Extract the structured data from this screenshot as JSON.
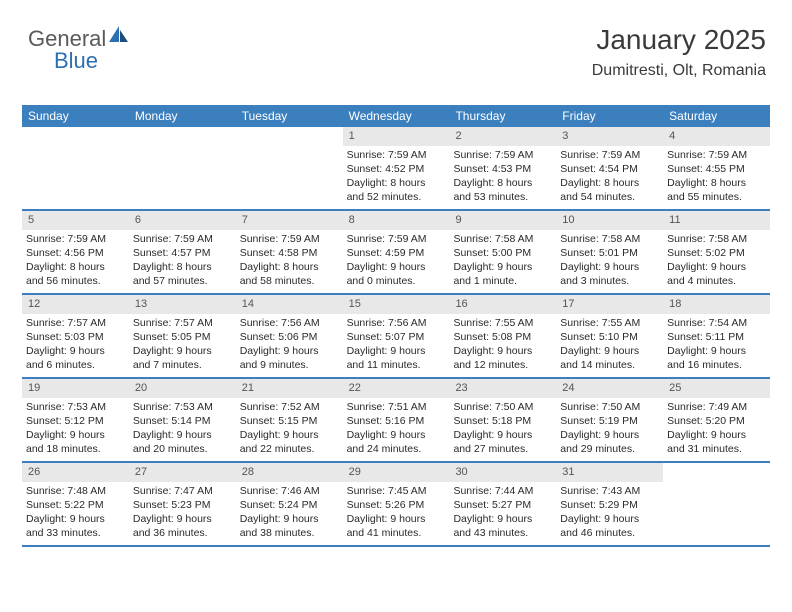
{
  "logo": {
    "text1": "General",
    "text2": "Blue"
  },
  "header": {
    "month": "January 2025",
    "location": "Dumitresti, Olt, Romania"
  },
  "colors": {
    "header_bg": "#3b7fbf",
    "header_text": "#ffffff",
    "daynum_bg": "#e8e8e8",
    "row_border": "#3b7fbf",
    "logo_gray": "#5a5a5a",
    "logo_blue": "#2d6fb3"
  },
  "day_labels": [
    "Sunday",
    "Monday",
    "Tuesday",
    "Wednesday",
    "Thursday",
    "Friday",
    "Saturday"
  ],
  "weeks": [
    [
      {
        "n": "",
        "sunrise": "",
        "sunset": "",
        "day": ""
      },
      {
        "n": "",
        "sunrise": "",
        "sunset": "",
        "day": ""
      },
      {
        "n": "",
        "sunrise": "",
        "sunset": "",
        "day": ""
      },
      {
        "n": "1",
        "sunrise": "Sunrise: 7:59 AM",
        "sunset": "Sunset: 4:52 PM",
        "day": "Daylight: 8 hours and 52 minutes."
      },
      {
        "n": "2",
        "sunrise": "Sunrise: 7:59 AM",
        "sunset": "Sunset: 4:53 PM",
        "day": "Daylight: 8 hours and 53 minutes."
      },
      {
        "n": "3",
        "sunrise": "Sunrise: 7:59 AM",
        "sunset": "Sunset: 4:54 PM",
        "day": "Daylight: 8 hours and 54 minutes."
      },
      {
        "n": "4",
        "sunrise": "Sunrise: 7:59 AM",
        "sunset": "Sunset: 4:55 PM",
        "day": "Daylight: 8 hours and 55 minutes."
      }
    ],
    [
      {
        "n": "5",
        "sunrise": "Sunrise: 7:59 AM",
        "sunset": "Sunset: 4:56 PM",
        "day": "Daylight: 8 hours and 56 minutes."
      },
      {
        "n": "6",
        "sunrise": "Sunrise: 7:59 AM",
        "sunset": "Sunset: 4:57 PM",
        "day": "Daylight: 8 hours and 57 minutes."
      },
      {
        "n": "7",
        "sunrise": "Sunrise: 7:59 AM",
        "sunset": "Sunset: 4:58 PM",
        "day": "Daylight: 8 hours and 58 minutes."
      },
      {
        "n": "8",
        "sunrise": "Sunrise: 7:59 AM",
        "sunset": "Sunset: 4:59 PM",
        "day": "Daylight: 9 hours and 0 minutes."
      },
      {
        "n": "9",
        "sunrise": "Sunrise: 7:58 AM",
        "sunset": "Sunset: 5:00 PM",
        "day": "Daylight: 9 hours and 1 minute."
      },
      {
        "n": "10",
        "sunrise": "Sunrise: 7:58 AM",
        "sunset": "Sunset: 5:01 PM",
        "day": "Daylight: 9 hours and 3 minutes."
      },
      {
        "n": "11",
        "sunrise": "Sunrise: 7:58 AM",
        "sunset": "Sunset: 5:02 PM",
        "day": "Daylight: 9 hours and 4 minutes."
      }
    ],
    [
      {
        "n": "12",
        "sunrise": "Sunrise: 7:57 AM",
        "sunset": "Sunset: 5:03 PM",
        "day": "Daylight: 9 hours and 6 minutes."
      },
      {
        "n": "13",
        "sunrise": "Sunrise: 7:57 AM",
        "sunset": "Sunset: 5:05 PM",
        "day": "Daylight: 9 hours and 7 minutes."
      },
      {
        "n": "14",
        "sunrise": "Sunrise: 7:56 AM",
        "sunset": "Sunset: 5:06 PM",
        "day": "Daylight: 9 hours and 9 minutes."
      },
      {
        "n": "15",
        "sunrise": "Sunrise: 7:56 AM",
        "sunset": "Sunset: 5:07 PM",
        "day": "Daylight: 9 hours and 11 minutes."
      },
      {
        "n": "16",
        "sunrise": "Sunrise: 7:55 AM",
        "sunset": "Sunset: 5:08 PM",
        "day": "Daylight: 9 hours and 12 minutes."
      },
      {
        "n": "17",
        "sunrise": "Sunrise: 7:55 AM",
        "sunset": "Sunset: 5:10 PM",
        "day": "Daylight: 9 hours and 14 minutes."
      },
      {
        "n": "18",
        "sunrise": "Sunrise: 7:54 AM",
        "sunset": "Sunset: 5:11 PM",
        "day": "Daylight: 9 hours and 16 minutes."
      }
    ],
    [
      {
        "n": "19",
        "sunrise": "Sunrise: 7:53 AM",
        "sunset": "Sunset: 5:12 PM",
        "day": "Daylight: 9 hours and 18 minutes."
      },
      {
        "n": "20",
        "sunrise": "Sunrise: 7:53 AM",
        "sunset": "Sunset: 5:14 PM",
        "day": "Daylight: 9 hours and 20 minutes."
      },
      {
        "n": "21",
        "sunrise": "Sunrise: 7:52 AM",
        "sunset": "Sunset: 5:15 PM",
        "day": "Daylight: 9 hours and 22 minutes."
      },
      {
        "n": "22",
        "sunrise": "Sunrise: 7:51 AM",
        "sunset": "Sunset: 5:16 PM",
        "day": "Daylight: 9 hours and 24 minutes."
      },
      {
        "n": "23",
        "sunrise": "Sunrise: 7:50 AM",
        "sunset": "Sunset: 5:18 PM",
        "day": "Daylight: 9 hours and 27 minutes."
      },
      {
        "n": "24",
        "sunrise": "Sunrise: 7:50 AM",
        "sunset": "Sunset: 5:19 PM",
        "day": "Daylight: 9 hours and 29 minutes."
      },
      {
        "n": "25",
        "sunrise": "Sunrise: 7:49 AM",
        "sunset": "Sunset: 5:20 PM",
        "day": "Daylight: 9 hours and 31 minutes."
      }
    ],
    [
      {
        "n": "26",
        "sunrise": "Sunrise: 7:48 AM",
        "sunset": "Sunset: 5:22 PM",
        "day": "Daylight: 9 hours and 33 minutes."
      },
      {
        "n": "27",
        "sunrise": "Sunrise: 7:47 AM",
        "sunset": "Sunset: 5:23 PM",
        "day": "Daylight: 9 hours and 36 minutes."
      },
      {
        "n": "28",
        "sunrise": "Sunrise: 7:46 AM",
        "sunset": "Sunset: 5:24 PM",
        "day": "Daylight: 9 hours and 38 minutes."
      },
      {
        "n": "29",
        "sunrise": "Sunrise: 7:45 AM",
        "sunset": "Sunset: 5:26 PM",
        "day": "Daylight: 9 hours and 41 minutes."
      },
      {
        "n": "30",
        "sunrise": "Sunrise: 7:44 AM",
        "sunset": "Sunset: 5:27 PM",
        "day": "Daylight: 9 hours and 43 minutes."
      },
      {
        "n": "31",
        "sunrise": "Sunrise: 7:43 AM",
        "sunset": "Sunset: 5:29 PM",
        "day": "Daylight: 9 hours and 46 minutes."
      },
      {
        "n": "",
        "sunrise": "",
        "sunset": "",
        "day": ""
      }
    ]
  ]
}
